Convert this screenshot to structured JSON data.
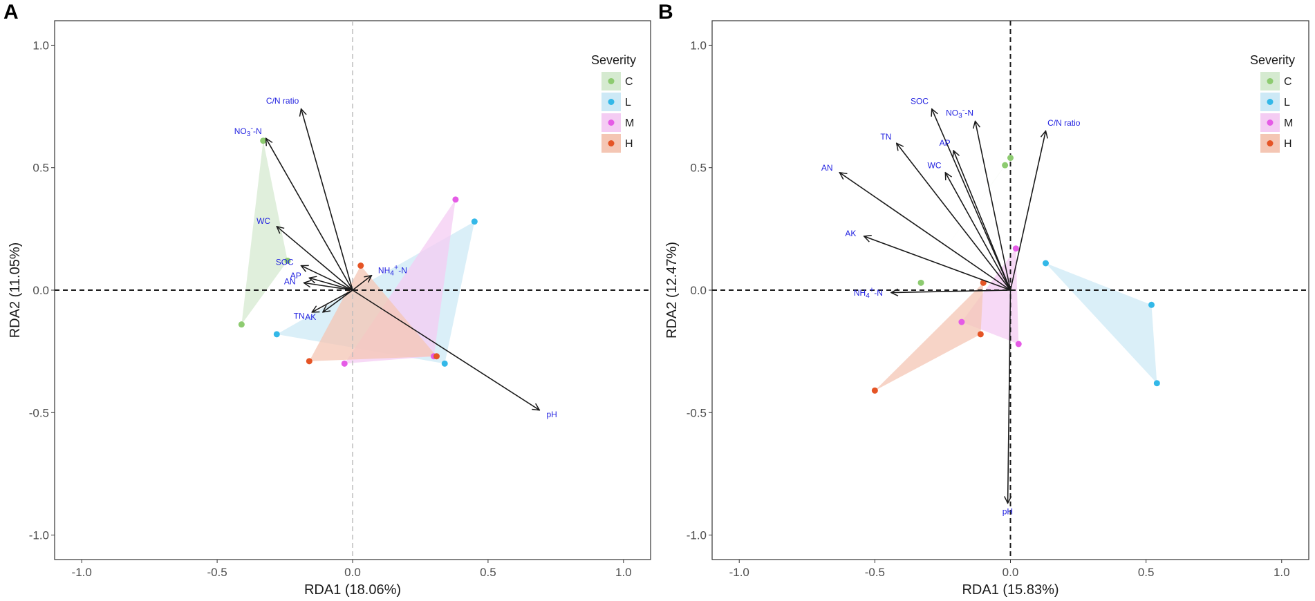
{
  "chart_data": [
    {
      "type": "scatter",
      "panel_label": "A",
      "xlabel": "RDA1 (18.06%)",
      "ylabel": "RDA2 (11.05%)",
      "xlim": [
        -1.1,
        1.1
      ],
      "ylim": [
        -1.1,
        1.1
      ],
      "xticks": [
        -1.0,
        -0.5,
        0.0,
        0.5,
        1.0
      ],
      "yticks": [
        -1.0,
        -0.5,
        0.0,
        0.5,
        1.0
      ],
      "xtick_labels": [
        "-1.0",
        "-0.5",
        "0.0",
        "0.5",
        "1.0"
      ],
      "ytick_labels": [
        "-1.0",
        "-0.5",
        "0.0",
        "0.5",
        "1.0"
      ],
      "zero_lines": {
        "vertical": "gray-dashed",
        "horizontal": "black-dashed"
      },
      "grid": false,
      "legend": {
        "title": "Severity",
        "placement": "right-top",
        "entries": [
          {
            "label": "C",
            "color": "#8dcb70",
            "fill": "#d5ead0"
          },
          {
            "label": "L",
            "color": "#33b8e8",
            "fill": "#cde9f6"
          },
          {
            "label": "M",
            "color": "#e55be6",
            "fill": "#f4ccf3"
          },
          {
            "label": "H",
            "color": "#e55425",
            "fill": "#f4c6b4"
          }
        ]
      },
      "series": [
        {
          "name": "C",
          "points": [
            [
              -0.33,
              0.61
            ],
            [
              -0.41,
              -0.14
            ],
            [
              -0.24,
              0.12
            ]
          ]
        },
        {
          "name": "L",
          "points": [
            [
              0.45,
              0.28
            ],
            [
              -0.28,
              -0.18
            ],
            [
              0.34,
              -0.3
            ]
          ]
        },
        {
          "name": "M",
          "points": [
            [
              0.38,
              0.37
            ],
            [
              -0.03,
              -0.3
            ],
            [
              0.3,
              -0.27
            ]
          ]
        },
        {
          "name": "H",
          "points": [
            [
              0.03,
              0.1
            ],
            [
              -0.16,
              -0.29
            ],
            [
              0.31,
              -0.27
            ]
          ]
        }
      ],
      "arrows": [
        {
          "label": "C/N ratio",
          "x": -0.19,
          "y": 0.74
        },
        {
          "label": "NO3⁻-N",
          "x": -0.32,
          "y": 0.62
        },
        {
          "label": "WC",
          "x": -0.28,
          "y": 0.26
        },
        {
          "label": "SOC",
          "x": -0.19,
          "y": 0.1
        },
        {
          "label": "AP",
          "x": -0.16,
          "y": 0.05
        },
        {
          "label": "AN",
          "x": -0.18,
          "y": 0.03
        },
        {
          "label": "TN",
          "x": -0.15,
          "y": -0.09
        },
        {
          "label": "AK",
          "x": -0.11,
          "y": -0.09
        },
        {
          "label": "NH4⁺-N",
          "x": 0.07,
          "y": 0.06
        },
        {
          "label": "pH",
          "x": 0.69,
          "y": -0.49
        }
      ]
    },
    {
      "type": "scatter",
      "panel_label": "B",
      "xlabel": "RDA1 (15.83%)",
      "ylabel": "RDA2 (12.47%)",
      "xlim": [
        -1.1,
        1.1
      ],
      "ylim": [
        -1.1,
        1.1
      ],
      "xticks": [
        -1.0,
        -0.5,
        0.0,
        0.5,
        1.0
      ],
      "yticks": [
        -1.0,
        -0.5,
        0.0,
        0.5,
        1.0
      ],
      "xtick_labels": [
        "-1.0",
        "-0.5",
        "0.0",
        "0.5",
        "1.0"
      ],
      "ytick_labels": [
        "-1.0",
        "-0.5",
        "0.0",
        "0.5",
        "1.0"
      ],
      "zero_lines": {
        "vertical": "black-dashed",
        "horizontal": "black-dashed"
      },
      "grid": false,
      "legend": {
        "title": "Severity",
        "placement": "right-top",
        "entries": [
          {
            "label": "C",
            "color": "#8dcb70",
            "fill": "#d5ead0"
          },
          {
            "label": "L",
            "color": "#33b8e8",
            "fill": "#cde9f6"
          },
          {
            "label": "M",
            "color": "#e55be6",
            "fill": "#f4ccf3"
          },
          {
            "label": "H",
            "color": "#e55425",
            "fill": "#f4c6b4"
          }
        ]
      },
      "series": [
        {
          "name": "C",
          "points": [
            [
              0.0,
              0.54
            ],
            [
              -0.02,
              0.51
            ],
            [
              -0.33,
              0.03
            ]
          ]
        },
        {
          "name": "L",
          "points": [
            [
              0.13,
              0.11
            ],
            [
              0.52,
              -0.06
            ],
            [
              0.54,
              -0.38
            ]
          ]
        },
        {
          "name": "M",
          "points": [
            [
              0.02,
              0.17
            ],
            [
              -0.18,
              -0.13
            ],
            [
              0.03,
              -0.22
            ]
          ]
        },
        {
          "name": "H",
          "points": [
            [
              -0.1,
              0.03
            ],
            [
              -0.11,
              -0.18
            ],
            [
              -0.5,
              -0.41
            ]
          ]
        }
      ],
      "arrows": [
        {
          "label": "SOC",
          "x": -0.29,
          "y": 0.74
        },
        {
          "label": "NO3⁻-N",
          "x": -0.13,
          "y": 0.69
        },
        {
          "label": "C/N ratio",
          "x": 0.13,
          "y": 0.65
        },
        {
          "label": "TN",
          "x": -0.42,
          "y": 0.6
        },
        {
          "label": "AP",
          "x": -0.21,
          "y": 0.57
        },
        {
          "label": "WC",
          "x": -0.24,
          "y": 0.48
        },
        {
          "label": "AN",
          "x": -0.63,
          "y": 0.48
        },
        {
          "label": "AK",
          "x": -0.54,
          "y": 0.22
        },
        {
          "label": "NH4⁺-N",
          "x": -0.44,
          "y": -0.01
        },
        {
          "label": "pH",
          "x": -0.01,
          "y": -0.87
        }
      ]
    }
  ]
}
